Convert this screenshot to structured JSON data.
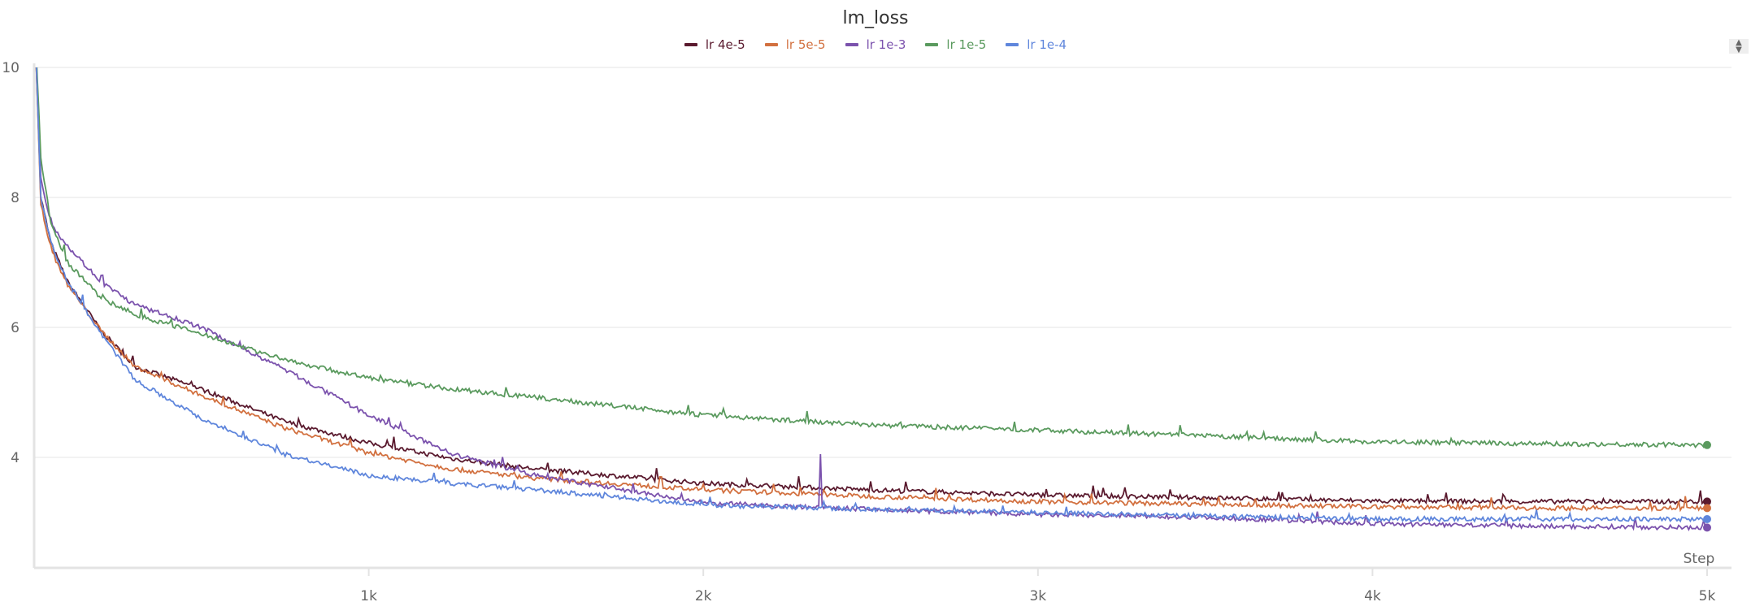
{
  "chart_data": {
    "type": "line",
    "title": "lm_loss",
    "xlabel": "Step",
    "ylabel": "",
    "xlim": [
      0,
      5000
    ],
    "ylim": [
      2.3,
      10
    ],
    "xticks": [
      {
        "value": 1000,
        "label": "1k"
      },
      {
        "value": 2000,
        "label": "2k"
      },
      {
        "value": 3000,
        "label": "3k"
      },
      {
        "value": 4000,
        "label": "4k"
      },
      {
        "value": 5000,
        "label": "5k"
      }
    ],
    "yticks": [
      {
        "value": 4,
        "label": "4"
      },
      {
        "value": 6,
        "label": "6"
      },
      {
        "value": 8,
        "label": "8"
      },
      {
        "value": 10,
        "label": "10"
      }
    ],
    "grid": true,
    "legend_position": "top-center",
    "x": [
      0,
      20,
      50,
      100,
      200,
      300,
      500,
      750,
      1000,
      1250,
      1500,
      2000,
      2500,
      3000,
      3500,
      4000,
      4500,
      5000
    ],
    "series": [
      {
        "name": "lr 4e-5",
        "color": "#5a1a2e",
        "values": [
          11,
          8.0,
          7.3,
          6.7,
          5.95,
          5.4,
          5.05,
          4.55,
          4.22,
          3.98,
          3.82,
          3.6,
          3.5,
          3.42,
          3.38,
          3.33,
          3.32,
          3.32
        ]
      },
      {
        "name": "lr 5e-5",
        "color": "#d2703f",
        "values": [
          11,
          7.9,
          7.2,
          6.65,
          5.95,
          5.4,
          4.95,
          4.45,
          4.07,
          3.82,
          3.68,
          3.5,
          3.4,
          3.32,
          3.28,
          3.24,
          3.22,
          3.22
        ]
      },
      {
        "name": "lr 1e-3",
        "color": "#7b52ad",
        "values": [
          11,
          8.3,
          7.6,
          7.25,
          6.7,
          6.35,
          6.0,
          5.35,
          4.65,
          4.05,
          3.72,
          3.3,
          3.2,
          3.12,
          3.08,
          2.98,
          2.94,
          2.92
        ],
        "spike": {
          "x": 2350,
          "y": 4.05
        }
      },
      {
        "name": "lr 1e-5",
        "color": "#5a9a5e",
        "values": [
          11,
          8.6,
          7.6,
          7.0,
          6.45,
          6.2,
          5.9,
          5.5,
          5.22,
          5.05,
          4.92,
          4.65,
          4.5,
          4.42,
          4.33,
          4.24,
          4.21,
          4.19
        ]
      },
      {
        "name": "lr 1e-4",
        "color": "#5f86dc",
        "values": [
          11,
          8.0,
          7.3,
          6.7,
          5.9,
          5.2,
          4.6,
          4.05,
          3.72,
          3.6,
          3.5,
          3.27,
          3.2,
          3.15,
          3.1,
          3.05,
          3.05,
          3.05
        ]
      }
    ]
  }
}
